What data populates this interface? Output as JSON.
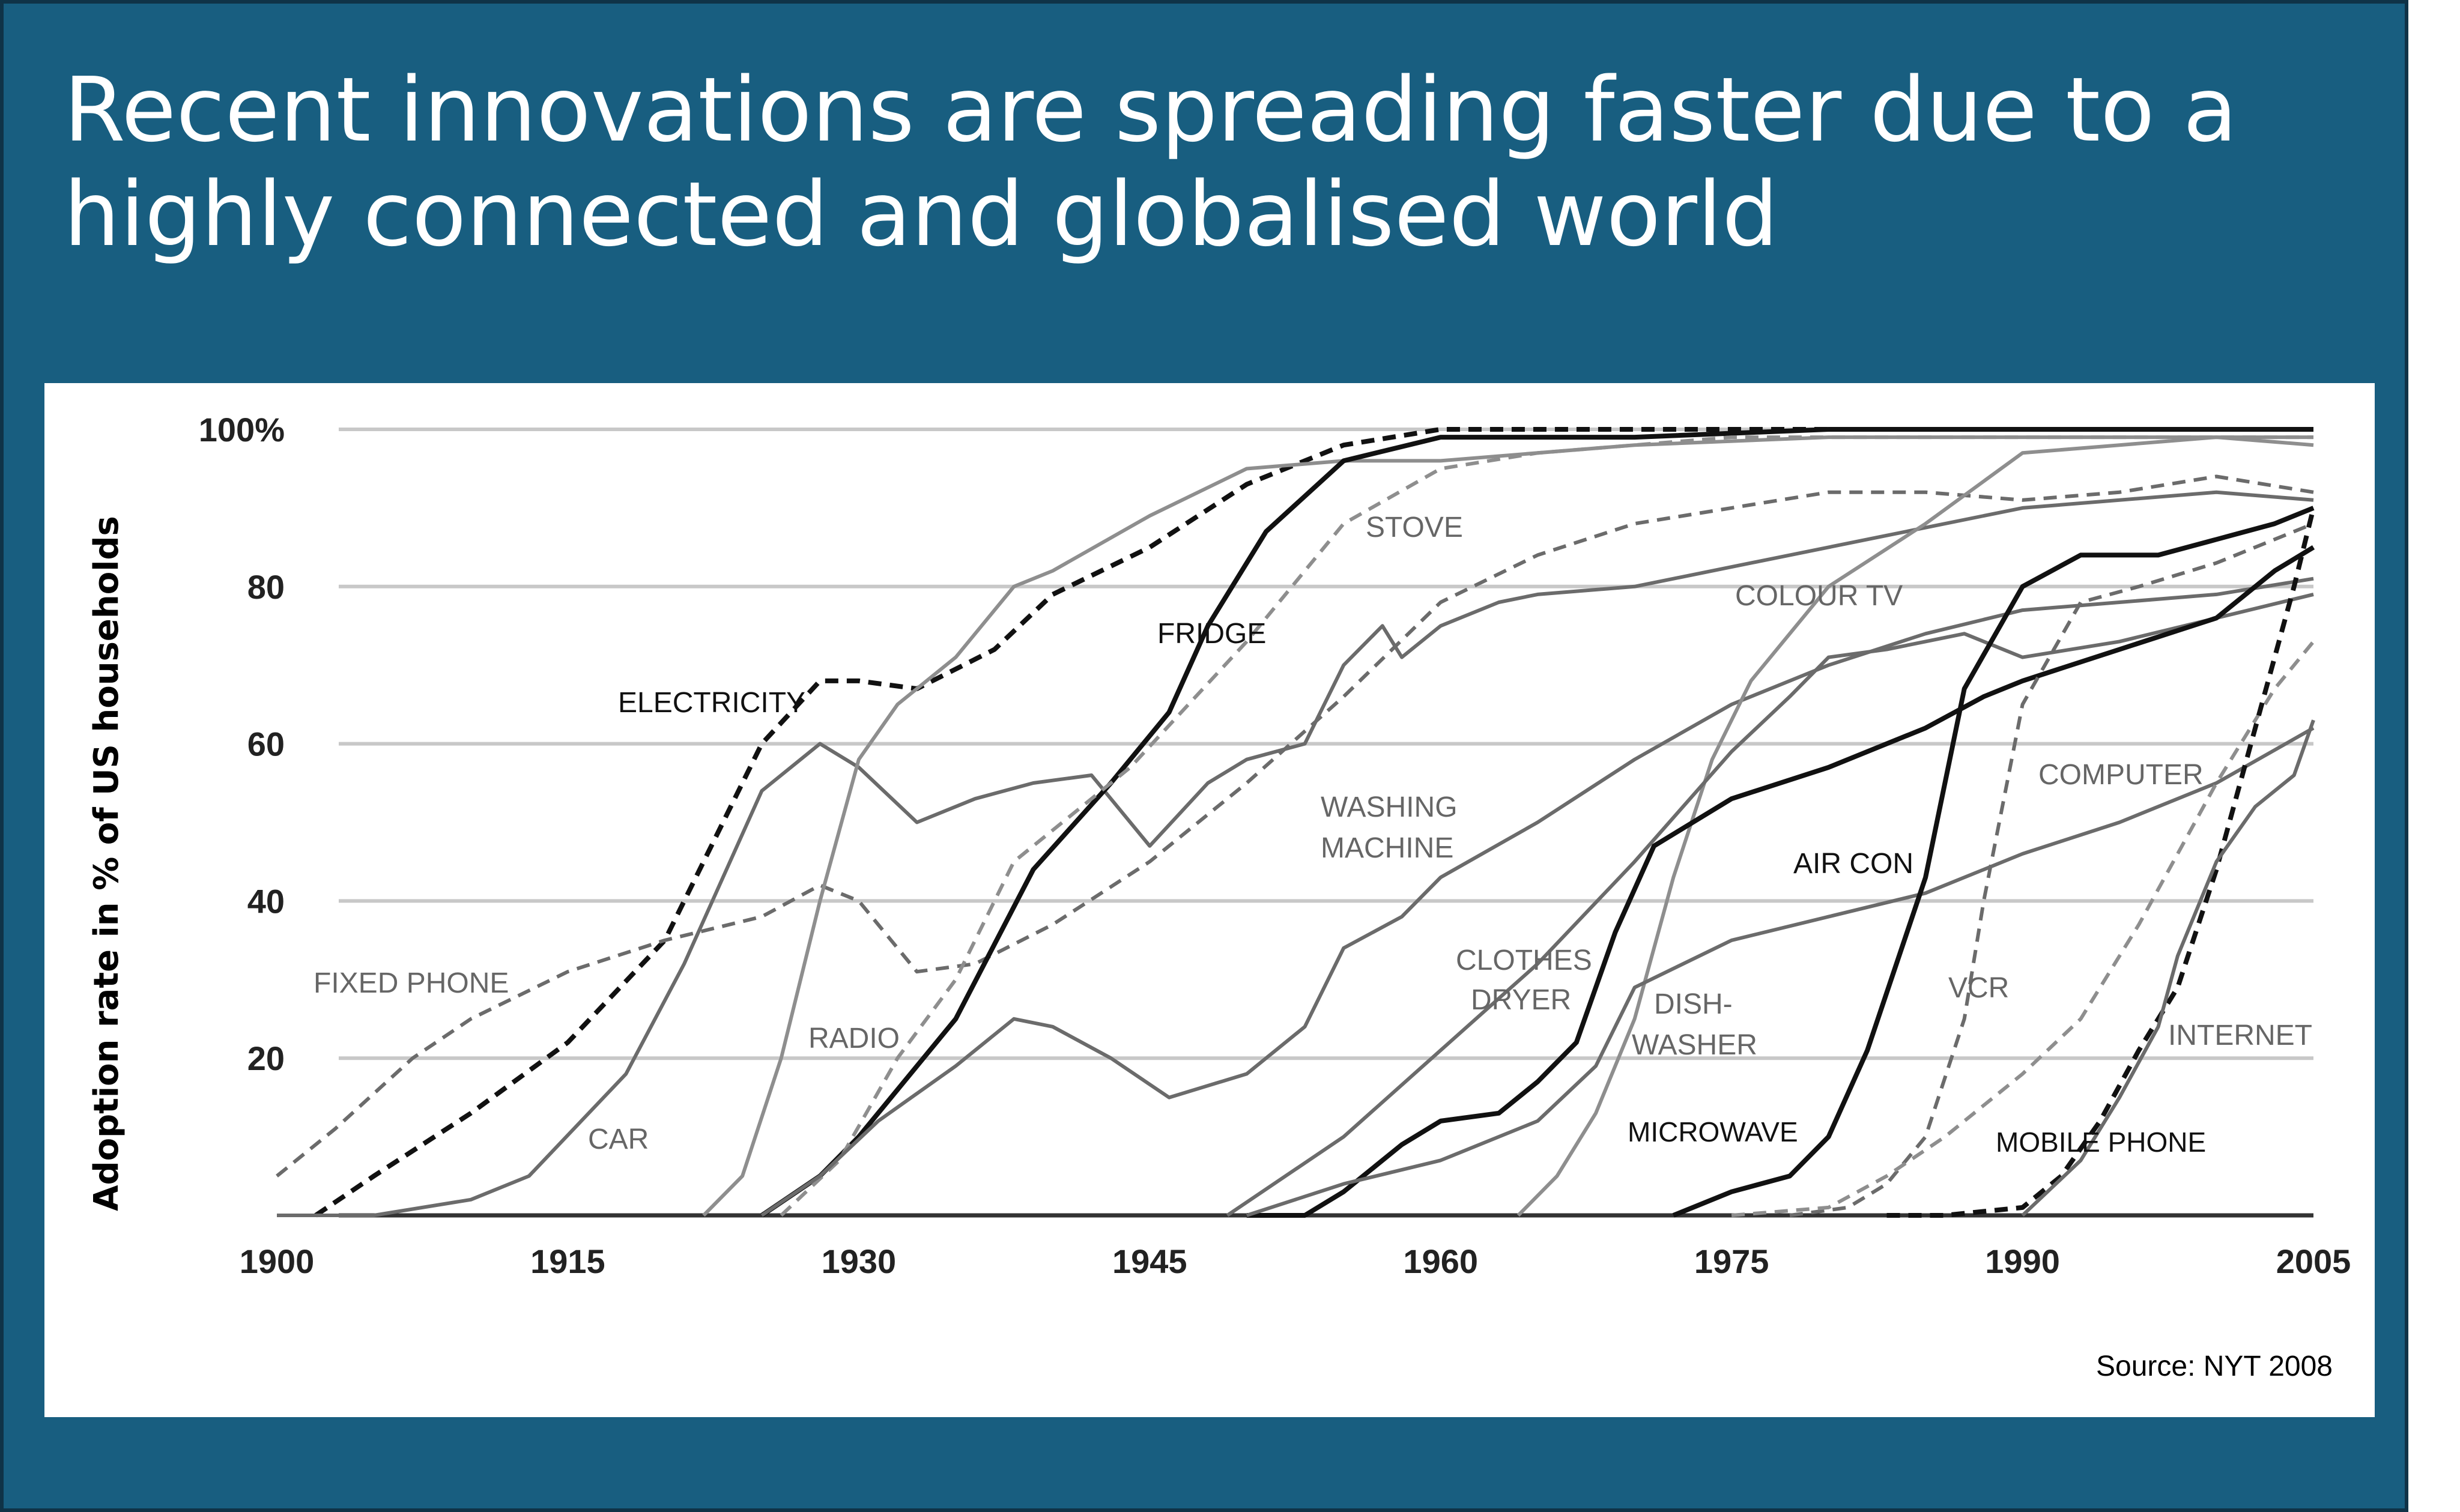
{
  "title": "Recent innovations are spreading faster due to a highly connected and globalised world",
  "source": "Source: NYT 2008",
  "chart_data": {
    "type": "line",
    "title": "",
    "xlabel": "",
    "ylabel": "Adoption rate in % of US households",
    "xlim": [
      1900,
      2005
    ],
    "ylim": [
      0,
      100
    ],
    "xticks": [
      "1900",
      "1915",
      "1930",
      "1945",
      "1960",
      "1975",
      "1990",
      "2005"
    ],
    "yticks": [
      "20",
      "40",
      "60",
      "80",
      "100%"
    ],
    "series": [
      {
        "name": "ELECTRICITY",
        "style": "dashed",
        "tone": "dark",
        "x": [
          1902,
          1905,
          1910,
          1915,
          1920,
          1925,
          1928,
          1930,
          1933,
          1937,
          1940,
          1945,
          1950,
          1955,
          1960,
          1970,
          1980,
          2005
        ],
        "y": [
          0,
          5,
          13,
          22,
          35,
          60,
          68,
          68,
          67,
          72,
          79,
          85,
          93,
          98,
          100,
          100,
          100,
          100
        ]
      },
      {
        "name": "FIXED PHONE",
        "style": "dashed",
        "tone": "medium",
        "x": [
          1900,
          1903,
          1907,
          1910,
          1915,
          1920,
          1925,
          1928,
          1930,
          1933,
          1936,
          1940,
          1945,
          1950,
          1955,
          1960,
          1965,
          1970,
          1975,
          1980,
          1985,
          1990,
          1995,
          2000,
          2005
        ],
        "y": [
          5,
          11,
          20,
          25,
          31,
          35,
          38,
          42,
          40,
          31,
          32,
          37,
          45,
          55,
          66,
          78,
          84,
          88,
          90,
          92,
          92,
          91,
          92,
          94,
          92
        ]
      },
      {
        "name": "CAR",
        "style": "solid",
        "tone": "medium",
        "x": [
          1900,
          1905,
          1910,
          1913,
          1918,
          1921,
          1925,
          1928,
          1930,
          1933,
          1936,
          1939,
          1942,
          1945,
          1948,
          1950,
          1953,
          1955,
          1957,
          1958,
          1960,
          1963,
          1965,
          1970,
          1980,
          1990,
          2000,
          2005
        ],
        "y": [
          0,
          0,
          2,
          5,
          18,
          32,
          54,
          60,
          57,
          50,
          53,
          55,
          56,
          47,
          55,
          58,
          60,
          70,
          75,
          71,
          75,
          78,
          79,
          80,
          85,
          90,
          92,
          91
        ]
      },
      {
        "name": "RADIO",
        "style": "solid",
        "tone": "light",
        "x": [
          1922,
          1924,
          1926,
          1928,
          1930,
          1932,
          1935,
          1938,
          1940,
          1945,
          1950,
          1955,
          1960,
          1970,
          1980,
          1990,
          2000,
          2005
        ],
        "y": [
          0,
          5,
          20,
          40,
          58,
          65,
          71,
          80,
          82,
          89,
          95,
          96,
          96,
          98,
          99,
          99,
          99,
          99
        ]
      },
      {
        "name": "FRIDGE",
        "style": "solid",
        "tone": "dark",
        "x": [
          1925,
          1928,
          1930,
          1935,
          1939,
          1943,
          1946,
          1948,
          1951,
          1955,
          1960,
          1970,
          1980,
          2005
        ],
        "y": [
          0,
          5,
          10,
          25,
          44,
          55,
          64,
          75,
          87,
          96,
          99,
          99,
          100,
          100
        ]
      },
      {
        "name": "STOVE",
        "style": "dashed",
        "tone": "light",
        "x": [
          1926,
          1929,
          1932,
          1935,
          1938,
          1941,
          1944,
          1947,
          1950,
          1955,
          1960,
          1965,
          1975,
          1985,
          1995,
          2005
        ],
        "y": [
          0,
          7,
          20,
          30,
          45,
          51,
          57,
          65,
          73,
          88,
          95,
          97,
          99,
          99,
          99,
          99
        ]
      },
      {
        "name": "WASHING MACHINE",
        "style": "solid",
        "tone": "medium",
        "x": [
          1925,
          1928,
          1931,
          1935,
          1938,
          1940,
          1943,
          1946,
          1950,
          1953,
          1955,
          1958,
          1960,
          1965,
          1970,
          1975,
          1980,
          1985,
          1990,
          1995,
          2000,
          2005
        ],
        "y": [
          0,
          5,
          12,
          19,
          25,
          24,
          20,
          15,
          18,
          24,
          34,
          38,
          43,
          50,
          58,
          65,
          70,
          74,
          77,
          78,
          79,
          81
        ]
      },
      {
        "name": "COLOUR TV",
        "style": "solid",
        "tone": "light",
        "x": [
          1964,
          1966,
          1968,
          1970,
          1972,
          1974,
          1976,
          1978,
          1980,
          1985,
          1990,
          1995,
          2000,
          2005
        ],
        "y": [
          0,
          5,
          13,
          25,
          43,
          58,
          68,
          74,
          80,
          88,
          97,
          98,
          99,
          98
        ]
      },
      {
        "name": "CLOTHES DRYER",
        "style": "solid",
        "tone": "medium",
        "x": [
          1949,
          1955,
          1960,
          1965,
          1970,
          1975,
          1978,
          1980,
          1983,
          1987,
          1990,
          1995,
          2000,
          2005
        ],
        "y": [
          0,
          10,
          21,
          32,
          45,
          59,
          66,
          71,
          72,
          74,
          71,
          73,
          76,
          79
        ]
      },
      {
        "name": "AIR CON",
        "style": "solid",
        "tone": "dark",
        "x": [
          1950,
          1953,
          1955,
          1958,
          1960,
          1963,
          1965,
          1967,
          1969,
          1971,
          1975,
          1980,
          1985,
          1988,
          1990,
          1995,
          2000,
          2003,
          2005
        ],
        "y": [
          0,
          0,
          3,
          9,
          12,
          13,
          17,
          22,
          36,
          47,
          53,
          57,
          62,
          66,
          68,
          72,
          76,
          82,
          85
        ]
      },
      {
        "name": "DISH-WASHER",
        "style": "solid",
        "tone": "medium",
        "x": [
          1950,
          1955,
          1960,
          1965,
          1968,
          1970,
          1975,
          1980,
          1985,
          1990,
          1995,
          2000,
          2005
        ],
        "y": [
          0,
          4,
          7,
          12,
          19,
          29,
          35,
          38,
          41,
          46,
          50,
          55,
          62
        ]
      },
      {
        "name": "MICROWAVE",
        "style": "solid",
        "tone": "dark",
        "x": [
          1972,
          1975,
          1978,
          1980,
          1982,
          1985,
          1987,
          1990,
          1993,
          1997,
          2000,
          2003,
          2005
        ],
        "y": [
          0,
          3,
          5,
          10,
          21,
          43,
          67,
          80,
          84,
          84,
          86,
          88,
          90
        ]
      },
      {
        "name": "VCR",
        "style": "dashed",
        "tone": "medium",
        "x": [
          1978,
          1981,
          1983,
          1985,
          1987,
          1988,
          1990,
          1993,
          1996,
          2000,
          2005
        ],
        "y": [
          0,
          1,
          4,
          10,
          25,
          40,
          65,
          78,
          80,
          83,
          88
        ]
      },
      {
        "name": "COMPUTER",
        "style": "dashed",
        "tone": "light",
        "x": [
          1975,
          1980,
          1983,
          1986,
          1990,
          1993,
          1996,
          2000,
          2003,
          2005
        ],
        "y": [
          0,
          1,
          5,
          10,
          18,
          25,
          37,
          55,
          67,
          73
        ]
      },
      {
        "name": "MOBILE PHONE",
        "style": "dashed",
        "tone": "dark",
        "x": [
          1983,
          1986,
          1990,
          1992,
          1994,
          1996,
          1998,
          2000,
          2002,
          2004,
          2005
        ],
        "y": [
          0,
          0,
          1,
          5,
          12,
          21,
          29,
          44,
          62,
          80,
          90
        ]
      },
      {
        "name": "INTERNET",
        "style": "solid",
        "tone": "medium",
        "x": [
          1990,
          1993,
          1995,
          1997,
          1998,
          2000,
          2002,
          2004,
          2005
        ],
        "y": [
          0,
          7,
          15,
          24,
          33,
          45,
          52,
          56,
          63
        ]
      }
    ]
  }
}
